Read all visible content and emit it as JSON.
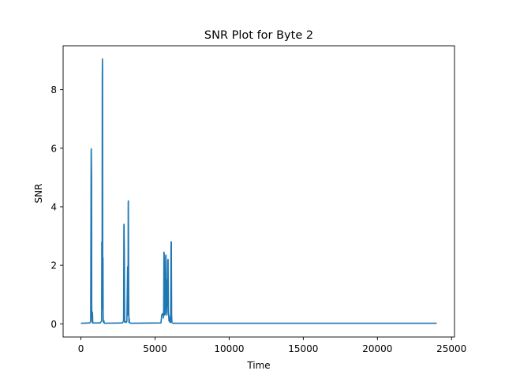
{
  "chart_data": {
    "type": "line",
    "title": "SNR Plot for Byte 2",
    "xlabel": "Time",
    "ylabel": "SNR",
    "xlim": [
      -1200,
      25200
    ],
    "ylim": [
      -0.45,
      9.5
    ],
    "xticks": [
      0,
      5000,
      10000,
      15000,
      20000,
      25000
    ],
    "xtick_labels": [
      "0",
      "5000",
      "10000",
      "15000",
      "20000",
      "25000"
    ],
    "yticks": [
      0,
      2,
      4,
      6,
      8
    ],
    "ytick_labels": [
      "0",
      "2",
      "4",
      "6",
      "8"
    ],
    "grid": false,
    "legend": "none",
    "series_color": "#1f77b4",
    "series": [
      {
        "x": [
          0,
          600,
          660,
          690,
          700,
          720,
          730,
          760,
          780,
          800,
          1300,
          1400,
          1410,
          1430,
          1440,
          1450,
          1460,
          1470,
          1480,
          1490,
          1500,
          1520,
          1540,
          1580,
          2800,
          2880,
          2900,
          2910,
          2930,
          2950,
          2960,
          3000,
          3050,
          3100,
          3150,
          3160,
          3180,
          3190,
          3200,
          3210,
          3230,
          3240,
          3250,
          3280,
          3350,
          5400,
          5450,
          5500,
          5550,
          5560,
          5580,
          5600,
          5620,
          5650,
          5700,
          5720,
          5740,
          5760,
          5780,
          5800,
          5820,
          5840,
          5860,
          5880,
          5900,
          5920,
          5940,
          5960,
          5980,
          6000,
          6050,
          6080,
          6100,
          6120,
          6140,
          6160,
          6200,
          6250,
          8000,
          12000,
          16000,
          20000,
          24000
        ],
        "y": [
          0.02,
          0.03,
          0.1,
          5.9,
          5.98,
          5.0,
          0.45,
          0.05,
          0.4,
          0.03,
          0.03,
          0.1,
          2.8,
          0.5,
          8.2,
          9.05,
          8.8,
          2.8,
          0.6,
          2.25,
          0.2,
          0.05,
          0.12,
          0.02,
          0.03,
          0.1,
          3.35,
          3.4,
          2.5,
          0.2,
          0.05,
          0.08,
          0.05,
          0.08,
          1.95,
          1.9,
          0.3,
          4.15,
          4.2,
          3.0,
          0.4,
          0.05,
          0.2,
          0.04,
          0.02,
          0.03,
          0.3,
          0.35,
          0.3,
          0.2,
          0.35,
          2.45,
          2.4,
          0.3,
          0.35,
          2.3,
          2.35,
          0.5,
          1.1,
          0.3,
          1.5,
          0.6,
          2.15,
          2.2,
          0.4,
          0.3,
          0.1,
          0.25,
          0.15,
          0.05,
          0.05,
          2.8,
          2.8,
          0.3,
          0.06,
          0.03,
          0.02,
          0.02,
          0.02,
          0.02,
          0.02,
          0.02,
          0.02
        ]
      }
    ]
  }
}
